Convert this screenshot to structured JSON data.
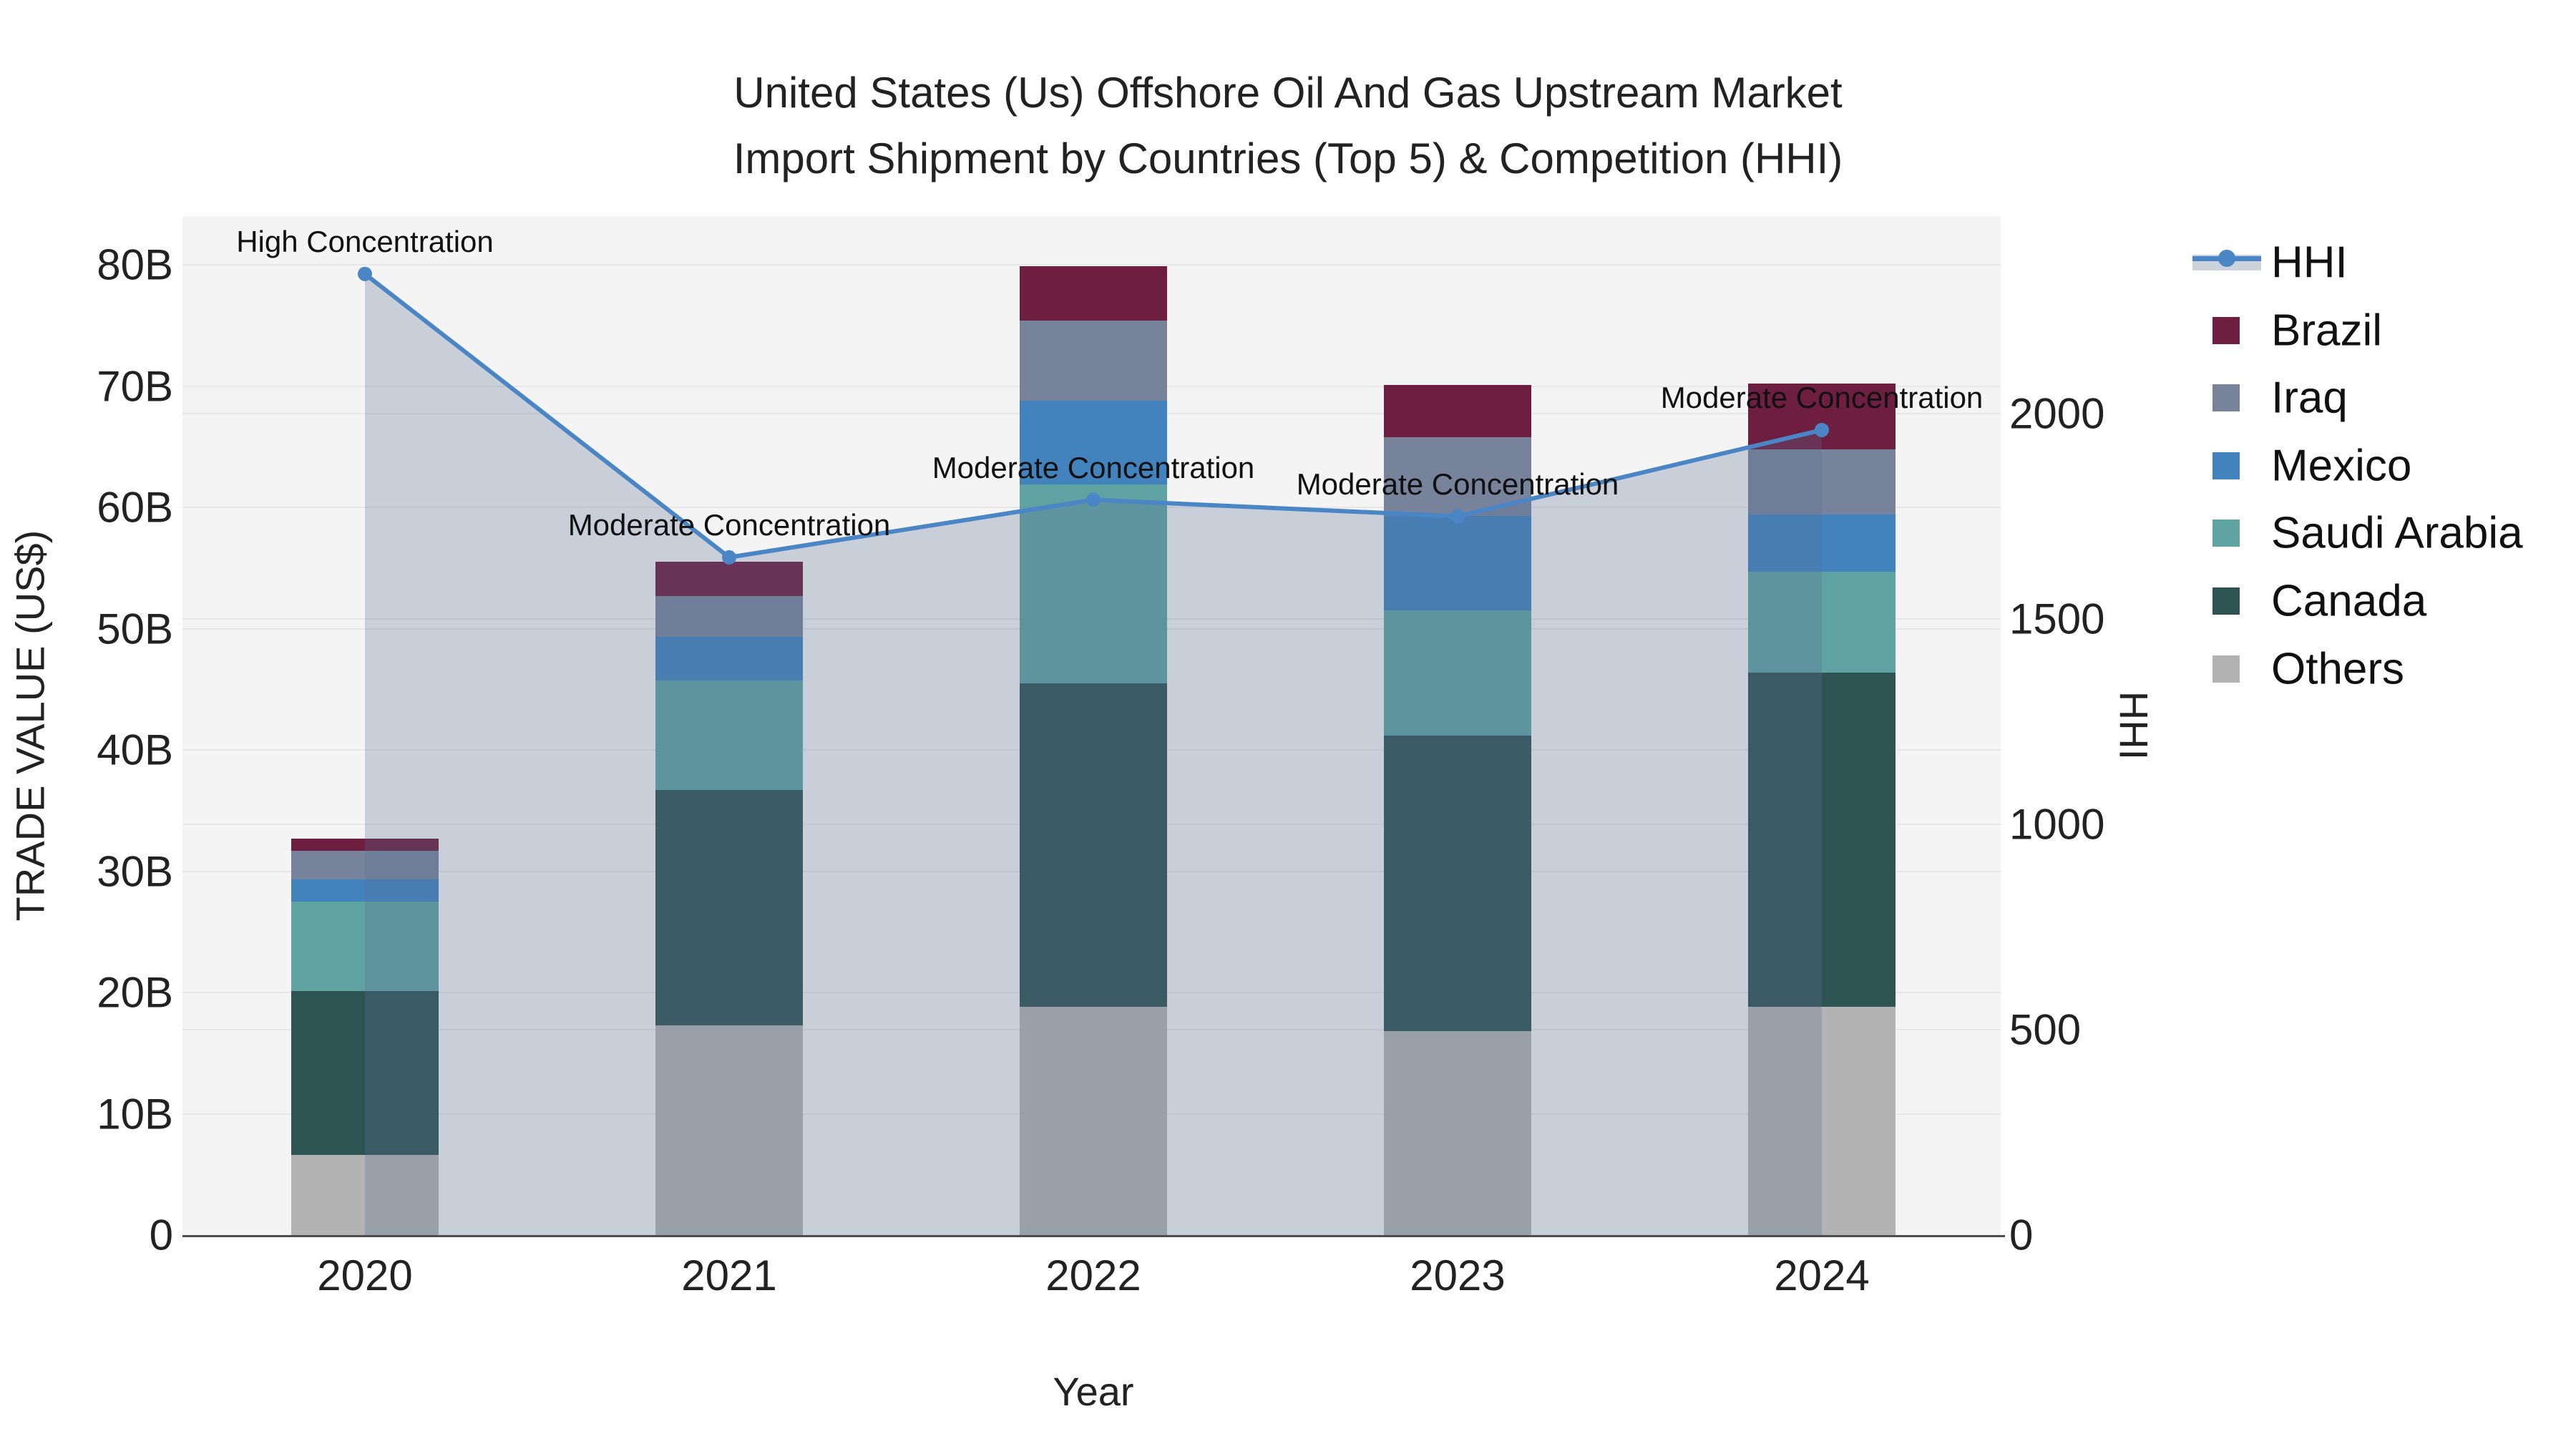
{
  "title": {
    "line1": "United States (Us) Offshore Oil And Gas Upstream Market",
    "line2": "Import Shipment by Countries (Top 5) & Competition (HHI)"
  },
  "axes": {
    "y_left": {
      "title": "TRADE VALUE (US$)",
      "tick_labels": [
        "0",
        "10B",
        "20B",
        "30B",
        "40B",
        "50B",
        "60B",
        "70B",
        "80B"
      ],
      "tick_values": [
        0,
        10,
        20,
        30,
        40,
        50,
        60,
        70,
        80
      ],
      "unit": "billion US$"
    },
    "y_right": {
      "title": "HHI",
      "tick_labels": [
        "0",
        "500",
        "1000",
        "1500",
        "2000"
      ],
      "tick_values": [
        0,
        500,
        1000,
        1500,
        2000
      ]
    },
    "x": {
      "title": "Year",
      "categories": [
        "2020",
        "2021",
        "2022",
        "2023",
        "2024"
      ]
    }
  },
  "legend": {
    "items": [
      {
        "label": "HHI",
        "type": "line",
        "color": "#4A86C5"
      },
      {
        "label": "Brazil",
        "type": "swatch",
        "color": "#6E1E3F"
      },
      {
        "label": "Iraq",
        "type": "swatch",
        "color": "#77839A"
      },
      {
        "label": "Mexico",
        "type": "swatch",
        "color": "#4283BD"
      },
      {
        "label": "Saudi Arabia",
        "type": "swatch",
        "color": "#5FA2A2"
      },
      {
        "label": "Canada",
        "type": "swatch",
        "color": "#2E5353"
      },
      {
        "label": "Others",
        "type": "swatch",
        "color": "#B3B3B3"
      }
    ]
  },
  "chart_data": {
    "type": "bar+line",
    "categories": [
      "2020",
      "2021",
      "2022",
      "2023",
      "2024"
    ],
    "stack_order": [
      "Others",
      "Canada",
      "Saudi Arabia",
      "Mexico",
      "Iraq",
      "Brazil"
    ],
    "series": [
      {
        "name": "Others",
        "color": "#B3B3B3",
        "values": [
          6.6,
          17.3,
          18.8,
          16.8,
          18.8
        ]
      },
      {
        "name": "Canada",
        "color": "#2E5353",
        "values": [
          13.5,
          19.4,
          26.7,
          24.4,
          27.6
        ]
      },
      {
        "name": "Saudi Arabia",
        "color": "#5FA2A2",
        "values": [
          7.4,
          9.0,
          16.4,
          10.3,
          8.3
        ]
      },
      {
        "name": "Mexico",
        "color": "#4283BD",
        "values": [
          1.8,
          3.6,
          6.9,
          7.8,
          4.7
        ]
      },
      {
        "name": "Iraq",
        "color": "#77839A",
        "values": [
          2.4,
          3.4,
          6.6,
          6.5,
          5.4
        ]
      },
      {
        "name": "Brazil",
        "color": "#6E1E3F",
        "values": [
          1.0,
          2.8,
          4.5,
          4.3,
          5.4
        ]
      }
    ],
    "bar_totals": [
      32.7,
      55.5,
      79.9,
      70.1,
      70.2
    ],
    "line_series": {
      "name": "HHI",
      "values": [
        2340,
        1650,
        1790,
        1750,
        1960
      ],
      "color": "#4A86C5",
      "area_fill": "rgba(90,110,146,0.28)"
    },
    "annotations": [
      {
        "x": "2020",
        "text": "High Concentration"
      },
      {
        "x": "2021",
        "text": "Moderate Concentration"
      },
      {
        "x": "2022",
        "text": "Moderate Concentration"
      },
      {
        "x": "2023",
        "text": "Moderate Concentration"
      },
      {
        "x": "2024",
        "text": "Moderate Concentration"
      }
    ],
    "ylim_left": [
      0,
      80
    ],
    "ylim_right_ref": 2000,
    "grid": true,
    "legend_position": "right"
  },
  "colors": {
    "plot_background": "#f4f4f4",
    "gridline": "#e7e7e7",
    "axis_line": "#4d4d4d",
    "hhi_line": "#4A86C5",
    "area_fill": "rgba(90,110,146,0.28)",
    "text": "#222222"
  }
}
